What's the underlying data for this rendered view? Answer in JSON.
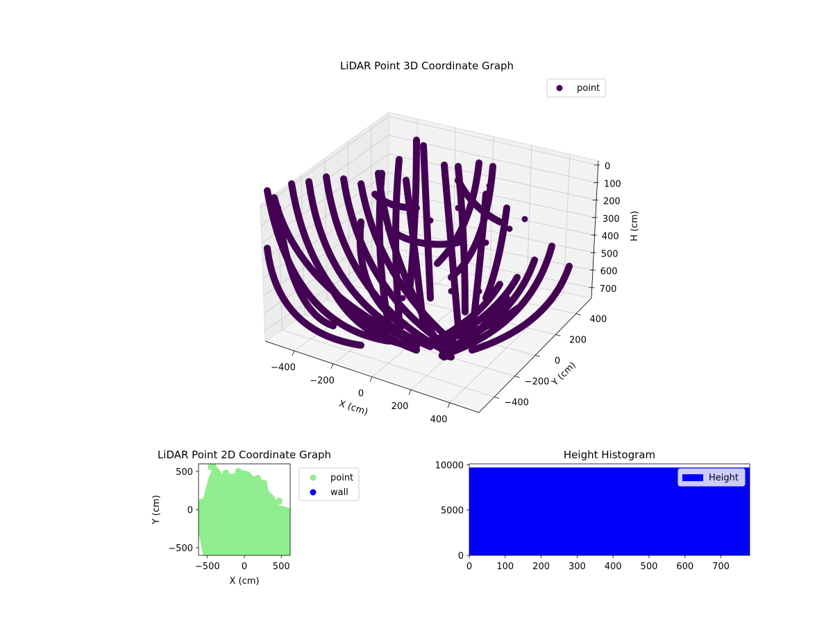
{
  "chart_data": [
    {
      "type": "scatter",
      "projection": "3d",
      "title": "LiDAR Point 3D Coordinate Graph",
      "xlabel": "X (cm)",
      "ylabel": "Y (cm)",
      "zlabel": "H (cm)",
      "xticks": [
        "−400",
        "−200",
        "0",
        "200",
        "400"
      ],
      "yticks": [
        "−400",
        "−200",
        "0",
        "200",
        "400"
      ],
      "zticks": [
        "0",
        "100",
        "200",
        "300",
        "400",
        "500",
        "600",
        "700"
      ],
      "xlim": [
        -550,
        550
      ],
      "ylim": [
        -550,
        550
      ],
      "zlim": [
        0,
        760
      ],
      "z_inverted": true,
      "legend": {
        "position": "upper right",
        "entries": [
          {
            "name": "point",
            "color": "#440154"
          }
        ]
      },
      "series": [
        {
          "name": "point",
          "color": "#440154",
          "description": "dense dome-shaped arcs of LiDAR points"
        }
      ],
      "grid": true
    },
    {
      "type": "scatter",
      "title": "LiDAR Point 2D Coordinate Graph",
      "xlabel": "X (cm)",
      "ylabel": "Y (cm)",
      "xticks": [
        "−500",
        "0",
        "500"
      ],
      "yticks": [
        "500",
        "0",
        "−500"
      ],
      "xlim": [
        -620,
        620
      ],
      "ylim": [
        -600,
        600
      ],
      "legend": {
        "position": "outside right",
        "entries": [
          {
            "name": "point",
            "color": "#90ee90"
          },
          {
            "name": "wall",
            "color": "#0000ff"
          }
        ]
      },
      "series": [
        {
          "name": "point",
          "color": "#90ee90"
        },
        {
          "name": "wall",
          "color": "#0000ff"
        }
      ]
    },
    {
      "type": "bar",
      "title": "Height Histogram",
      "xticks": [
        "0",
        "100",
        "200",
        "300",
        "400",
        "500",
        "600",
        "700"
      ],
      "yticks": [
        "0",
        "5000",
        "10000"
      ],
      "xlim": [
        0,
        780
      ],
      "ylim": [
        0,
        10100
      ],
      "legend": {
        "position": "upper right",
        "entries": [
          {
            "name": "Height",
            "color": "#0000ff"
          }
        ]
      },
      "series": [
        {
          "name": "Height",
          "color": "#0000ff",
          "bin_range": [
            0,
            780
          ],
          "value": 9700
        }
      ]
    }
  ]
}
